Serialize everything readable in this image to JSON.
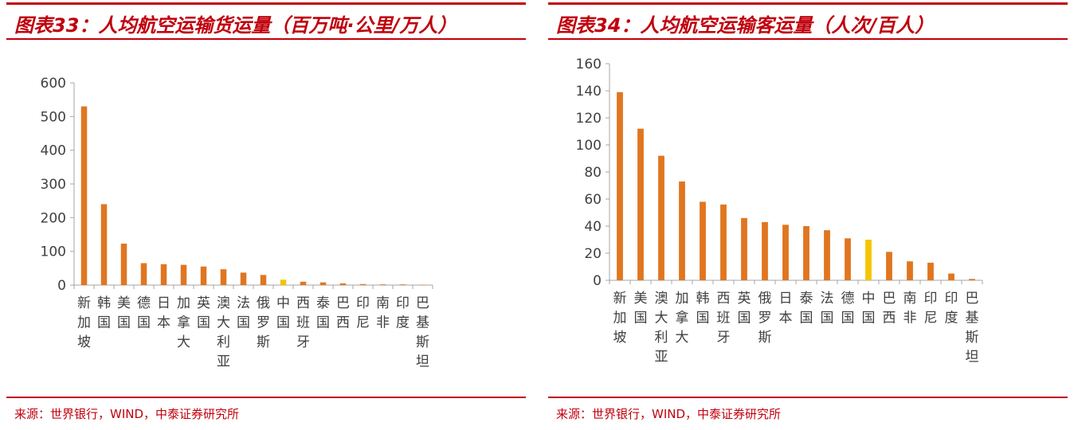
{
  "colors": {
    "accent": "#c0000d",
    "bar": "#e07620",
    "highlight": "#f5c400",
    "axis": "#a6a6a6",
    "text": "#404040"
  },
  "left": {
    "title": "图表33：人均航空运输货运量（百万吨·公里/万人）",
    "source": "来源：世界银行，WIND，中泰证券研究所"
  },
  "right": {
    "title": "图表34：人均航空运输客运量（人次/百人）",
    "source": "来源：世界银行，WIND，中泰证券研究所"
  },
  "chart_data": [
    {
      "type": "bar",
      "title": "",
      "xlabel": "",
      "ylabel": "",
      "ylim": [
        0,
        600
      ],
      "yticks": [
        0,
        100,
        200,
        300,
        400,
        500,
        600
      ],
      "categories": [
        "新加坡",
        "韩国",
        "美国",
        "德国",
        "日本",
        "加拿大",
        "英国",
        "澳大利亚",
        "法国",
        "俄罗斯",
        "中国",
        "西班牙",
        "泰国",
        "巴西",
        "印尼",
        "南非",
        "印度",
        "巴基斯坦"
      ],
      "values": [
        530,
        240,
        123,
        65,
        62,
        60,
        55,
        47,
        37,
        30,
        16,
        10,
        8,
        5,
        3,
        2,
        2,
        1
      ],
      "highlight": "中国",
      "grid": false,
      "legend": "none"
    },
    {
      "type": "bar",
      "title": "",
      "xlabel": "",
      "ylabel": "",
      "ylim": [
        0,
        160
      ],
      "yticks": [
        0,
        20,
        40,
        60,
        80,
        100,
        120,
        140,
        160
      ],
      "categories": [
        "新加坡",
        "美国",
        "澳大利亚",
        "加拿大",
        "韩国",
        "西班牙",
        "英国",
        "俄罗斯",
        "日本",
        "泰国",
        "法国",
        "德国",
        "中国",
        "巴西",
        "南非",
        "印尼",
        "印度",
        "巴基斯坦"
      ],
      "values": [
        139,
        112,
        92,
        73,
        58,
        56,
        46,
        43,
        41,
        40,
        37,
        31,
        30,
        21,
        14,
        13,
        5,
        1
      ],
      "highlight": "中国",
      "grid": false,
      "legend": "none"
    }
  ]
}
